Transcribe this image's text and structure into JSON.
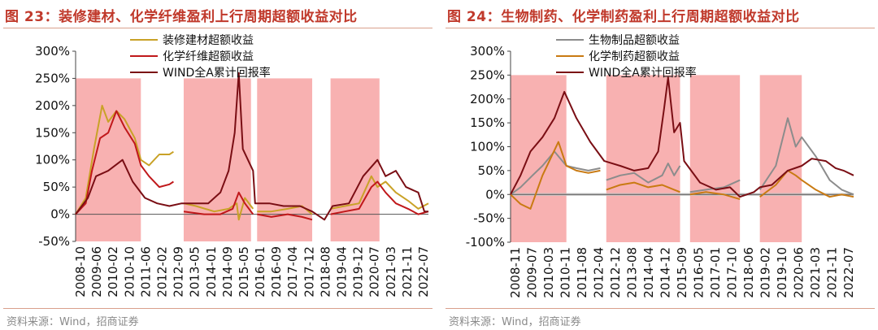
{
  "chart_data": [
    {
      "id": "fig23",
      "type": "line",
      "title": "图 23：装修建材、化学纤维盈利上行周期超额收益对比",
      "source": "资料来源：Wind，招商证券",
      "ylim": [
        -50,
        300
      ],
      "yticks": [
        -50,
        0,
        50,
        100,
        150,
        200,
        250,
        300
      ],
      "ytick_labels": [
        "-50%",
        "0%",
        "50%",
        "100%",
        "150%",
        "200%",
        "250%",
        "300%"
      ],
      "x_start": "2008-10",
      "x_end": "2023-03",
      "xtick_labels": [
        "2008-10",
        "2009-06",
        "2010-02",
        "2010-10",
        "2011-06",
        "2012-02",
        "2012-09",
        "2013-05",
        "2014-01",
        "2014-09",
        "2015-05",
        "2016-01",
        "2016-09",
        "2017-04",
        "2017-12",
        "2018-08",
        "2019-04",
        "2019-12",
        "2020-07",
        "2021-03",
        "2021-11",
        "2022-07"
      ],
      "shaded_periods": [
        {
          "start": "2008-10",
          "end": "2011-06",
          "top": 250
        },
        {
          "start": "2013-03",
          "end": "2015-12",
          "top": 250
        },
        {
          "start": "2016-03",
          "end": "2018-06",
          "top": 250
        },
        {
          "start": "2019-03",
          "end": "2021-03",
          "top": 250
        }
      ],
      "legend": [
        {
          "name": "装修建材超额收益",
          "color": "#c9a227"
        },
        {
          "name": "化学纤维超额收益",
          "color": "#c0181b"
        },
        {
          "name": "WIND全A累计回报率",
          "color": "#7a0e14"
        }
      ],
      "series": [
        {
          "name": "装修建材超额收益",
          "color": "#c9a227",
          "points": [
            [
              "2008-10",
              0
            ],
            [
              "2009-03",
              30
            ],
            [
              "2009-07",
              120
            ],
            [
              "2009-11",
              200
            ],
            [
              "2010-02",
              170
            ],
            [
              "2010-06",
              190
            ],
            [
              "2010-10",
              175
            ],
            [
              "2011-03",
              140
            ],
            [
              "2011-06",
              100
            ],
            [
              "2011-10",
              90
            ],
            [
              "2012-03",
              110
            ],
            [
              "2012-08",
              110
            ],
            [
              "2012-10",
              115
            ],
            [
              null,
              null
            ],
            [
              "2013-03",
              20
            ],
            [
              "2013-09",
              15
            ],
            [
              "2014-06",
              5
            ],
            [
              "2015-01",
              10
            ],
            [
              "2015-05",
              20
            ],
            [
              "2015-06",
              -10
            ],
            [
              "2015-09",
              30
            ],
            [
              "2016-01",
              10
            ],
            [
              null,
              null
            ],
            [
              "2016-03",
              5
            ],
            [
              "2016-10",
              5
            ],
            [
              "2017-06",
              10
            ],
            [
              "2018-01",
              15
            ],
            [
              "2018-06",
              0
            ],
            [
              null,
              null
            ],
            [
              "2019-03",
              10
            ],
            [
              "2019-10",
              15
            ],
            [
              "2020-05",
              20
            ],
            [
              "2020-11",
              70
            ],
            [
              "2021-02",
              50
            ],
            [
              "2021-06",
              60
            ],
            [
              "2021-11",
              40
            ],
            [
              "2022-05",
              25
            ],
            [
              "2022-10",
              10
            ],
            [
              "2023-03",
              20
            ]
          ]
        },
        {
          "name": "化学纤维超额收益",
          "color": "#c0181b",
          "points": [
            [
              "2008-10",
              0
            ],
            [
              "2009-03",
              20
            ],
            [
              "2009-06",
              80
            ],
            [
              "2009-10",
              140
            ],
            [
              "2010-02",
              150
            ],
            [
              "2010-06",
              190
            ],
            [
              "2010-10",
              160
            ],
            [
              "2011-03",
              130
            ],
            [
              "2011-06",
              90
            ],
            [
              "2011-10",
              70
            ],
            [
              "2012-03",
              50
            ],
            [
              "2012-08",
              55
            ],
            [
              "2012-10",
              60
            ],
            [
              null,
              null
            ],
            [
              "2013-03",
              5
            ],
            [
              "2014-01",
              0
            ],
            [
              "2014-09",
              0
            ],
            [
              "2015-03",
              10
            ],
            [
              "2015-06",
              40
            ],
            [
              "2015-09",
              20
            ],
            [
              "2016-01",
              0
            ],
            [
              null,
              null
            ],
            [
              "2016-03",
              0
            ],
            [
              "2016-10",
              -5
            ],
            [
              "2017-06",
              0
            ],
            [
              "2018-01",
              -5
            ],
            [
              "2018-06",
              -10
            ],
            [
              null,
              null
            ],
            [
              "2019-03",
              0
            ],
            [
              "2019-10",
              5
            ],
            [
              "2020-05",
              10
            ],
            [
              "2020-11",
              50
            ],
            [
              "2021-02",
              60
            ],
            [
              "2021-06",
              40
            ],
            [
              "2021-11",
              20
            ],
            [
              "2022-05",
              10
            ],
            [
              "2022-10",
              0
            ],
            [
              "2023-03",
              5
            ]
          ]
        },
        {
          "name": "WIND全A累计回报率",
          "color": "#7a0e14",
          "points": [
            [
              "2008-10",
              0
            ],
            [
              "2009-04",
              30
            ],
            [
              "2009-08",
              70
            ],
            [
              "2010-02",
              80
            ],
            [
              "2010-09",
              100
            ],
            [
              "2011-02",
              60
            ],
            [
              "2011-08",
              30
            ],
            [
              "2012-02",
              20
            ],
            [
              "2012-08",
              15
            ],
            [
              "2013-02",
              20
            ],
            [
              "2013-08",
              20
            ],
            [
              "2014-03",
              20
            ],
            [
              "2014-09",
              40
            ],
            [
              "2015-01",
              80
            ],
            [
              "2015-04",
              150
            ],
            [
              "2015-06",
              260
            ],
            [
              "2015-08",
              120
            ],
            [
              "2016-01",
              80
            ],
            [
              "2016-02",
              20
            ],
            [
              "2016-09",
              20
            ],
            [
              "2017-04",
              15
            ],
            [
              "2017-12",
              15
            ],
            [
              "2018-06",
              5
            ],
            [
              "2018-12",
              -10
            ],
            [
              "2019-04",
              15
            ],
            [
              "2019-12",
              20
            ],
            [
              "2020-07",
              70
            ],
            [
              "2021-02",
              100
            ],
            [
              "2021-06",
              70
            ],
            [
              "2021-11",
              80
            ],
            [
              "2022-04",
              50
            ],
            [
              "2022-10",
              40
            ],
            [
              "2023-01",
              5
            ],
            [
              "2023-03",
              5
            ]
          ]
        }
      ]
    },
    {
      "id": "fig24",
      "type": "line",
      "title": "图 24：生物制药、化学制药盈利上行周期超额收益对比",
      "source": "资料来源：Wind，招商证券",
      "ylim": [
        -100,
        300
      ],
      "yticks": [
        -100,
        -50,
        0,
        50,
        100,
        150,
        200,
        250,
        300
      ],
      "ytick_labels": [
        "-100%",
        "-50%",
        "0%",
        "50%",
        "100%",
        "150%",
        "200%",
        "250%",
        "300%"
      ],
      "x_start": "2008-11",
      "x_end": "2023-03",
      "xtick_labels": [
        "2008-11",
        "2009-07",
        "2010-03",
        "2010-11",
        "2011-08",
        "2012-04",
        "2012-12",
        "2013-08",
        "2014-04",
        "2014-12",
        "2015-09",
        "2016-05",
        "2017-01",
        "2017-10",
        "2018-06",
        "2019-02",
        "2019-10",
        "2020-06",
        "2021-03",
        "2021-11",
        "2022-07"
      ],
      "shaded_periods": [
        {
          "start": "2008-11",
          "end": "2011-03",
          "top": 250
        },
        {
          "start": "2012-11",
          "end": "2015-12",
          "top": 250
        },
        {
          "start": "2016-05",
          "end": "2018-06",
          "top": 250
        },
        {
          "start": "2019-04",
          "end": "2021-01",
          "top": 250
        }
      ],
      "zero_band": {
        "from": -3,
        "to": 3
      },
      "legend": [
        {
          "name": "生物制品超额收益",
          "color": "#8c8c8c"
        },
        {
          "name": "化学制药超额收益",
          "color": "#c97a12"
        },
        {
          "name": "WIND全A累计回报率",
          "color": "#7a0e14"
        }
      ],
      "series": [
        {
          "name": "生物制品超额收益",
          "color": "#8c8c8c",
          "points": [
            [
              "2008-11",
              0
            ],
            [
              "2009-04",
              15
            ],
            [
              "2009-10",
              40
            ],
            [
              "2010-03",
              60
            ],
            [
              "2010-09",
              90
            ],
            [
              "2011-03",
              60
            ],
            [
              "2011-08",
              55
            ],
            [
              "2012-02",
              50
            ],
            [
              "2012-08",
              55
            ],
            [
              null,
              null
            ],
            [
              "2012-11",
              30
            ],
            [
              "2013-06",
              40
            ],
            [
              "2014-01",
              45
            ],
            [
              "2014-08",
              25
            ],
            [
              "2015-03",
              40
            ],
            [
              "2015-06",
              65
            ],
            [
              "2015-09",
              40
            ],
            [
              "2015-12",
              60
            ],
            [
              null,
              null
            ],
            [
              "2016-05",
              5
            ],
            [
              "2017-01",
              10
            ],
            [
              "2017-10",
              15
            ],
            [
              "2018-06",
              30
            ],
            [
              null,
              null
            ],
            [
              "2019-04",
              10
            ],
            [
              "2019-12",
              60
            ],
            [
              "2020-06",
              160
            ],
            [
              "2020-10",
              100
            ],
            [
              "2021-01",
              120
            ],
            [
              "2021-08",
              80
            ],
            [
              "2022-03",
              30
            ],
            [
              "2022-09",
              10
            ],
            [
              "2023-03",
              0
            ]
          ]
        },
        {
          "name": "化学制药超额收益",
          "color": "#c97a12",
          "points": [
            [
              "2008-11",
              0
            ],
            [
              "2009-04",
              -20
            ],
            [
              "2009-09",
              -30
            ],
            [
              "2010-03",
              40
            ],
            [
              "2010-11",
              110
            ],
            [
              "2011-03",
              60
            ],
            [
              "2011-08",
              50
            ],
            [
              "2012-02",
              45
            ],
            [
              "2012-08",
              50
            ],
            [
              null,
              null
            ],
            [
              "2012-11",
              10
            ],
            [
              "2013-06",
              20
            ],
            [
              "2014-01",
              25
            ],
            [
              "2014-08",
              15
            ],
            [
              "2015-03",
              20
            ],
            [
              "2015-06",
              15
            ],
            [
              "2015-09",
              10
            ],
            [
              "2015-12",
              5
            ],
            [
              null,
              null
            ],
            [
              "2016-05",
              0
            ],
            [
              "2017-01",
              5
            ],
            [
              "2017-10",
              0
            ],
            [
              "2018-06",
              -10
            ],
            [
              null,
              null
            ],
            [
              "2019-04",
              -5
            ],
            [
              "2019-12",
              20
            ],
            [
              "2020-06",
              50
            ],
            [
              "2020-10",
              40
            ],
            [
              "2021-01",
              30
            ],
            [
              "2021-08",
              10
            ],
            [
              "2022-03",
              -5
            ],
            [
              "2022-09",
              0
            ],
            [
              "2023-03",
              -5
            ]
          ]
        },
        {
          "name": "WIND全A累计回报率",
          "color": "#7a0e14",
          "points": [
            [
              "2008-11",
              0
            ],
            [
              "2009-04",
              40
            ],
            [
              "2009-09",
              90
            ],
            [
              "2010-03",
              120
            ],
            [
              "2010-09",
              160
            ],
            [
              "2011-02",
              215
            ],
            [
              "2011-08",
              160
            ],
            [
              "2012-03",
              110
            ],
            [
              "2012-10",
              70
            ],
            [
              "2013-06",
              60
            ],
            [
              "2014-01",
              50
            ],
            [
              "2014-08",
              55
            ],
            [
              "2015-01",
              90
            ],
            [
              "2015-04",
              180
            ],
            [
              "2015-06",
              245
            ],
            [
              "2015-09",
              130
            ],
            [
              "2015-12",
              150
            ],
            [
              "2016-02",
              70
            ],
            [
              "2016-10",
              25
            ],
            [
              "2017-06",
              10
            ],
            [
              "2018-01",
              15
            ],
            [
              "2018-06",
              -5
            ],
            [
              "2019-01",
              5
            ],
            [
              "2019-04",
              15
            ],
            [
              "2019-10",
              20
            ],
            [
              "2020-06",
              50
            ],
            [
              "2021-01",
              60
            ],
            [
              "2021-06",
              75
            ],
            [
              "2022-01",
              70
            ],
            [
              "2022-06",
              55
            ],
            [
              "2022-10",
              50
            ],
            [
              "2023-03",
              40
            ]
          ]
        }
      ]
    }
  ]
}
